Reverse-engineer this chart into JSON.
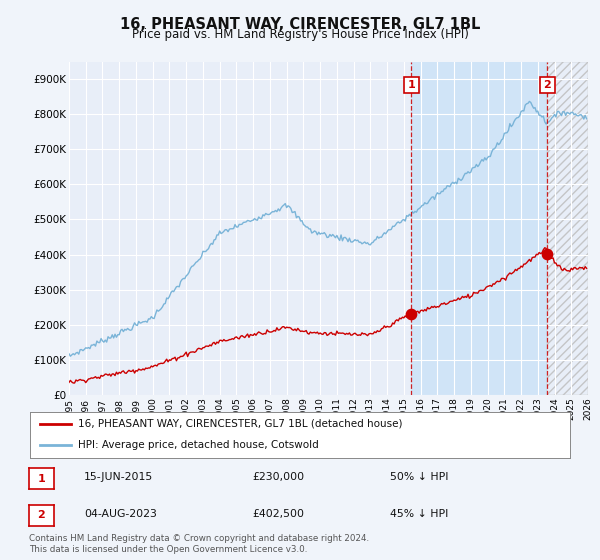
{
  "title": "16, PHEASANT WAY, CIRENCESTER, GL7 1BL",
  "subtitle": "Price paid vs. HM Land Registry's House Price Index (HPI)",
  "background_color": "#f0f4fa",
  "plot_bg_color": "#e8eef8",
  "grid_color": "#ffffff",
  "hpi_color": "#7ab4d8",
  "price_color": "#cc0000",
  "ylim": [
    0,
    950000
  ],
  "yticks": [
    0,
    100000,
    200000,
    300000,
    400000,
    500000,
    600000,
    700000,
    800000,
    900000
  ],
  "ytick_labels": [
    "£0",
    "£100K",
    "£200K",
    "£300K",
    "£400K",
    "£500K",
    "£600K",
    "£700K",
    "£800K",
    "£900K"
  ],
  "xstart_year": 1995,
  "xend_year": 2026,
  "sale1_date": 2015.45,
  "sale1_price": 230000,
  "sale2_date": 2023.58,
  "sale2_price": 402500,
  "shade_color": "#d0e4f7",
  "hatch_color": "#cccccc",
  "legend_line1": "16, PHEASANT WAY, CIRENCESTER, GL7 1BL (detached house)",
  "legend_line2": "HPI: Average price, detached house, Cotswold",
  "table_row1": [
    "1",
    "15-JUN-2015",
    "£230,000",
    "50% ↓ HPI"
  ],
  "table_row2": [
    "2",
    "04-AUG-2023",
    "£402,500",
    "45% ↓ HPI"
  ],
  "footer": "Contains HM Land Registry data © Crown copyright and database right 2024.\nThis data is licensed under the Open Government Licence v3.0.",
  "vline_color": "#cc0000",
  "marker_box_color": "#cc0000"
}
